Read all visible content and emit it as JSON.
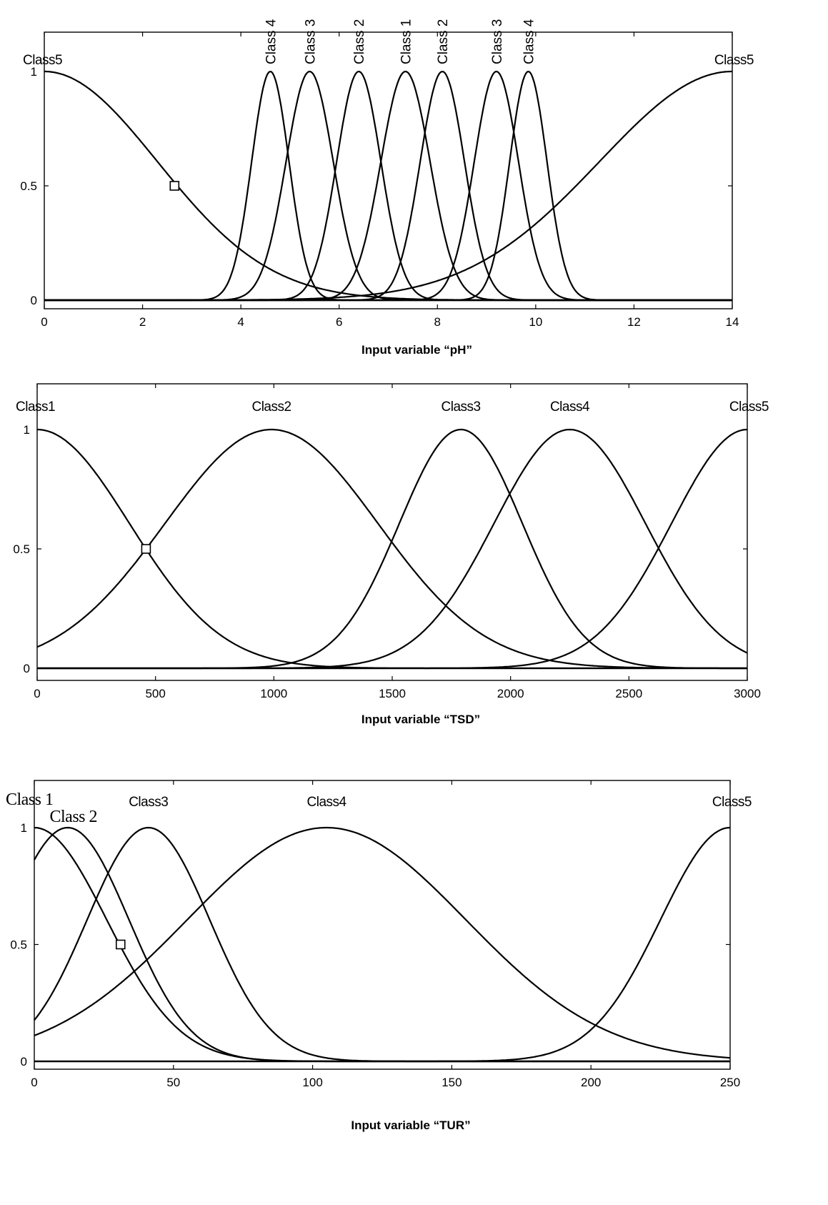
{
  "chart_data": [
    {
      "type": "line",
      "xlabel": "Input variable “pH”",
      "xlim": [
        0,
        14
      ],
      "ylim": [
        0,
        1
      ],
      "x_ticks": [
        "0",
        "2",
        "4",
        "6",
        "8",
        "10",
        "12",
        "14"
      ],
      "y_ticks": [
        "0",
        "0.5",
        "1"
      ],
      "label_style": "vertical",
      "series": [
        {
          "name": "Class5",
          "center": 0,
          "sigma": 2.3,
          "label_anchor": "left"
        },
        {
          "name": "Class5",
          "center": 14,
          "sigma": 2.7,
          "label_anchor": "right"
        },
        {
          "name": "Class 4",
          "center": 4.6,
          "sigma": 0.38
        },
        {
          "name": "Class 3",
          "center": 5.4,
          "sigma": 0.48
        },
        {
          "name": "Class 2",
          "center": 6.4,
          "sigma": 0.45
        },
        {
          "name": "Class 1",
          "center": 7.35,
          "sigma": 0.5
        },
        {
          "name": "Class 2",
          "center": 8.1,
          "sigma": 0.45
        },
        {
          "name": "Class 3",
          "center": 9.2,
          "sigma": 0.45
        },
        {
          "name": "Class 4",
          "center": 9.85,
          "sigma": 0.38
        }
      ],
      "marker": {
        "x": 2.65,
        "y": 0.5
      }
    },
    {
      "type": "line",
      "xlabel": "Input variable “TSD”",
      "xlim": [
        0,
        3000
      ],
      "ylim": [
        0,
        1
      ],
      "x_ticks": [
        "0",
        "500",
        "1000",
        "1500",
        "2000",
        "2500",
        "3000"
      ],
      "y_ticks": [
        "0",
        "0.5",
        "1"
      ],
      "label_style": "horizontal",
      "series": [
        {
          "name": "Class1",
          "center": 0,
          "sigma": 390,
          "label_anchor": "left"
        },
        {
          "name": "Class2",
          "center": 990,
          "sigma": 450
        },
        {
          "name": "Class3",
          "center": 1790,
          "sigma": 260
        },
        {
          "name": "Class4",
          "center": 2250,
          "sigma": 320
        },
        {
          "name": "Class5",
          "center": 3000,
          "sigma": 320,
          "label_anchor": "right"
        }
      ],
      "marker": {
        "x": 460,
        "y": 0.5
      }
    },
    {
      "type": "line",
      "xlabel": "Input variable “TUR”",
      "xlim": [
        0,
        250
      ],
      "ylim": [
        0,
        1
      ],
      "x_ticks": [
        "0",
        "50",
        "100",
        "150",
        "200",
        "250"
      ],
      "y_ticks": [
        "0",
        "0.5",
        "1"
      ],
      "label_style": "mixed",
      "series": [
        {
          "name": "Class 1",
          "center": 0,
          "sigma": 26,
          "label_anchor": "left",
          "label_font": "serif"
        },
        {
          "name": "Class 2",
          "center": 12,
          "sigma": 22,
          "label_font": "serif"
        },
        {
          "name": "Class3",
          "center": 41,
          "sigma": 22
        },
        {
          "name": "Class4",
          "center": 105,
          "sigma": 50
        },
        {
          "name": "Class5",
          "center": 250,
          "sigma": 25,
          "label_anchor": "right"
        }
      ],
      "marker": {
        "x": 31,
        "y": 0.5
      }
    }
  ]
}
